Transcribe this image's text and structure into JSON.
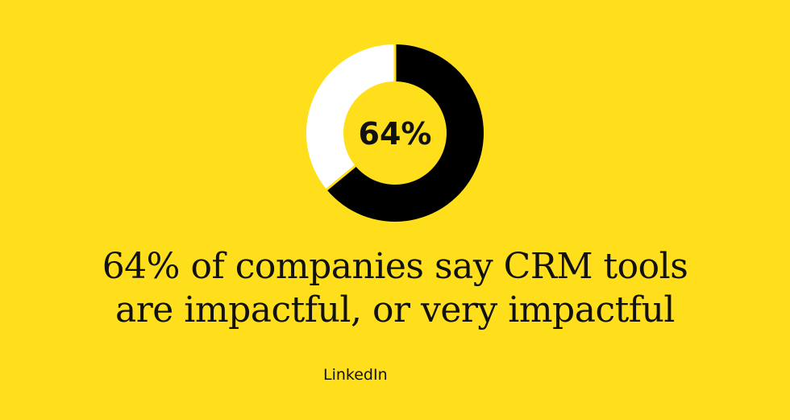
{
  "colors": {
    "background": "#ffdf1c",
    "filled": "#000000",
    "remaining": "#ffffff",
    "text": "#111111"
  },
  "chart_data": {
    "type": "pie",
    "variant": "donut",
    "slices": [
      {
        "label": "",
        "value": 64,
        "color": "#000000"
      },
      {
        "label": "",
        "value": 36,
        "color": "#ffffff"
      }
    ],
    "center_label": "64%",
    "title": "",
    "legend": "none"
  },
  "headline": {
    "line1": "64% of companies say CRM tools",
    "line2": "are impactful, or very impactful"
  },
  "source": "LinkedIn"
}
